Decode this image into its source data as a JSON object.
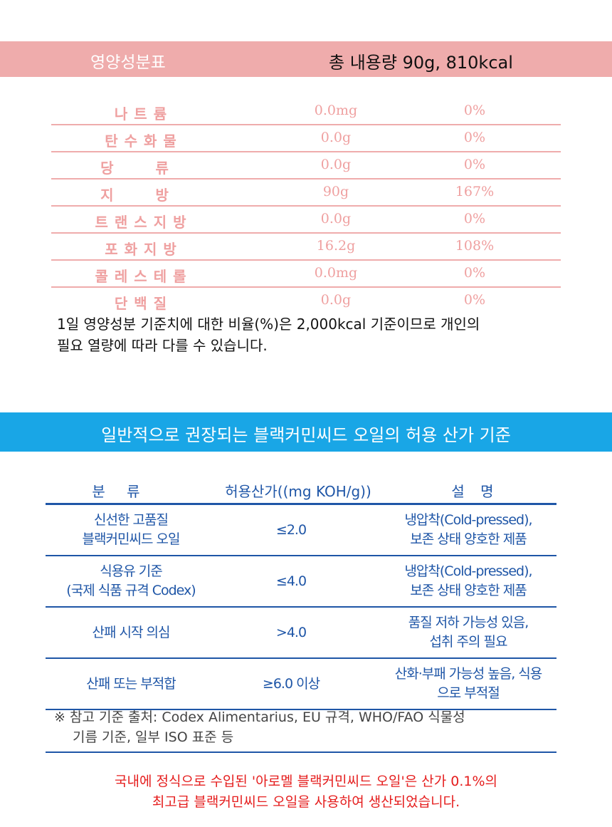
{
  "nutrition": {
    "title": "영양성분표",
    "total": "총 내용량 90g, 810kcal",
    "rows": [
      {
        "name": "나트륨",
        "amount": "0.0mg",
        "percent": "0%"
      },
      {
        "name": "탄수화물",
        "amount": "0.0g",
        "percent": "0%"
      },
      {
        "name": "당 류",
        "amount": "0.0g",
        "percent": "0%"
      },
      {
        "name": "지 방",
        "amount": "90g",
        "percent": "167%"
      },
      {
        "name": "트랜스지방",
        "amount": "0.0g",
        "percent": "0%"
      },
      {
        "name": "포화지방",
        "amount": "16.2g",
        "percent": "108%"
      },
      {
        "name": "콜레스테롤",
        "amount": "0.0mg",
        "percent": "0%"
      },
      {
        "name": "단백질",
        "amount": "0.0g",
        "percent": "0%"
      }
    ],
    "note_line1": "1일 영양성분 기준치에 대한 비율(%)은 2,000kcal 기준이므로 개인의",
    "note_line2": "필요 열량에 따라 다를 수 있습니다."
  },
  "acid": {
    "title": "일반적으로 권장되는 블랙커민씨드 오일의 허용 산가 기준",
    "headers": {
      "category": "분 류",
      "value": "허용산가((mg KOH/g))",
      "desc": "설 명"
    },
    "rows": [
      {
        "cat1": "신선한 고품질",
        "cat2": "블랙커민씨드 오일",
        "value": "≤2.0",
        "desc1": "냉압착(Cold-pressed),",
        "desc2": "보존 상태 양호한 제품"
      },
      {
        "cat1": "식용유 기준",
        "cat2": "(국제 식품 규격 Codex)",
        "value": "≤4.0",
        "desc1": "냉압착(Cold-pressed),",
        "desc2": "보존 상태 양호한 제품"
      },
      {
        "cat1": "산패 시작 의심",
        "cat2": "",
        "value": ">4.0",
        "desc1": "품질 저하 가능성 있음,",
        "desc2": "섭취 주의 필요"
      },
      {
        "cat1": "산패 또는 부적합",
        "cat2": "",
        "value": "≥6.0 이상",
        "desc1": "산화·부패 가능성 높음, 식용",
        "desc2": "으로 부적절"
      }
    ],
    "footnote_line1": "※ 참고 기준 출처: Codex Alimentarius, EU 규격, WHO/FAO 식물성",
    "footnote_line2": "기름 기준, 일부 ISO 표준 등"
  },
  "notice": {
    "line1": "국내에 정식으로 수입된 '아로멜 블랙커민씨드 오일'은 산가 0.1%의",
    "line2": "최고급 블랙커민씨드 오일을 사용하여 생산되었습니다."
  }
}
